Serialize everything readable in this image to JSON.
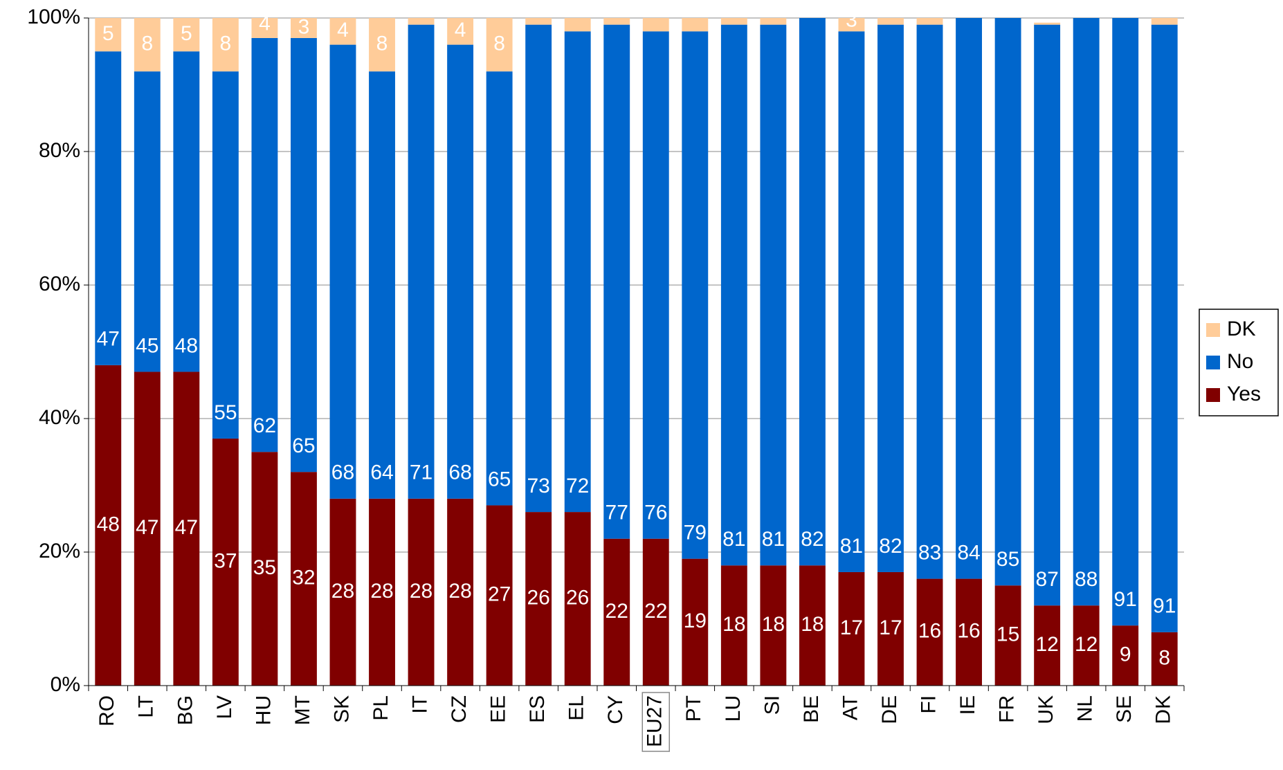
{
  "chart_data": {
    "type": "stacked_bar",
    "categories": [
      "RO",
      "LT",
      "BG",
      "LV",
      "HU",
      "MT",
      "SK",
      "PL",
      "IT",
      "CZ",
      "EE",
      "ES",
      "EL",
      "CY",
      "EU27",
      "PT",
      "LU",
      "SI",
      "BE",
      "AT",
      "DE",
      "FI",
      "IE",
      "FR",
      "UK",
      "NL",
      "SE",
      "DK"
    ],
    "highlighted_categories": [
      14
    ],
    "series": [
      {
        "name": "Yes",
        "color": "#800000",
        "values": [
          48,
          47,
          47,
          37,
          35,
          32,
          28,
          28,
          28,
          28,
          27,
          26,
          26,
          22,
          22,
          19,
          18,
          18,
          18,
          17,
          17,
          16,
          16,
          15,
          12,
          12,
          9,
          8
        ]
      },
      {
        "name": "No",
        "color": "#0066cc",
        "values": [
          47,
          45,
          48,
          55,
          62,
          65,
          68,
          64,
          71,
          68,
          65,
          73,
          72,
          77,
          76,
          79,
          81,
          81,
          82,
          81,
          82,
          83,
          84,
          85,
          87,
          88,
          91,
          91
        ]
      },
      {
        "name": "DK",
        "color": "#ffcc99",
        "values": [
          5,
          8,
          5,
          8,
          4,
          3,
          4,
          8,
          1,
          4,
          8,
          1,
          2,
          1,
          2,
          2,
          1,
          1,
          0.5,
          3,
          1,
          1,
          0.5,
          0.5,
          0.3,
          0.3,
          0.5,
          1
        ],
        "value_labels": [
          "5",
          "8",
          "5",
          "8",
          "4",
          "3",
          "4",
          "8",
          null,
          "4",
          "8",
          null,
          null,
          null,
          null,
          null,
          null,
          null,
          null,
          "3",
          null,
          null,
          null,
          null,
          null,
          null,
          null,
          null
        ]
      }
    ],
    "ylim": [
      0,
      100
    ],
    "yticks": [
      {
        "value": 0,
        "label": "0%"
      },
      {
        "value": 20,
        "label": "20%"
      },
      {
        "value": 40,
        "label": "40%"
      },
      {
        "value": 60,
        "label": "60%"
      },
      {
        "value": 80,
        "label": "80%"
      },
      {
        "value": 100,
        "label": "100%"
      }
    ],
    "grid": true,
    "legend": "right"
  }
}
